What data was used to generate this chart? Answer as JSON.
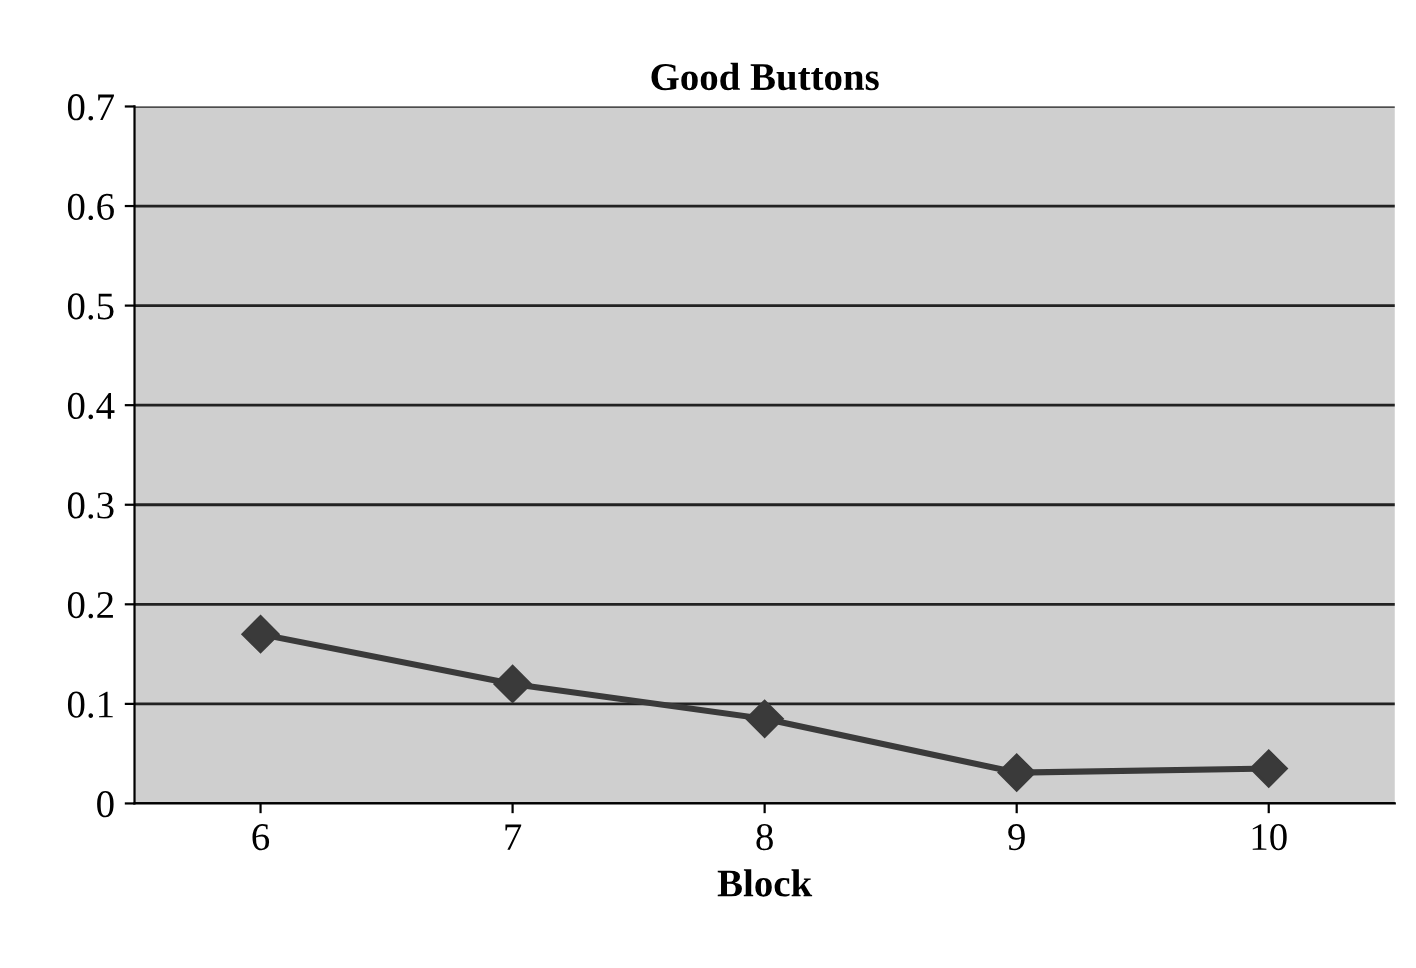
{
  "chart_data": {
    "type": "line",
    "title": "Good Buttons",
    "xlabel": "Block",
    "categories": [
      "6",
      "7",
      "8",
      "9",
      "10"
    ],
    "series": [
      {
        "color": "#3a3a3a",
        "values": [
          0.17,
          0.12,
          0.085,
          0.031,
          0.035
        ]
      }
    ],
    "ylim": [
      0,
      0.7
    ],
    "yticks": [
      {
        "value": 0,
        "label": "0"
      },
      0.1,
      0.2,
      0.3,
      0.4,
      0.5,
      0.6,
      0.7
    ],
    "grid": "y",
    "marker": "diamond",
    "line_style": "solid",
    "legend": false
  }
}
